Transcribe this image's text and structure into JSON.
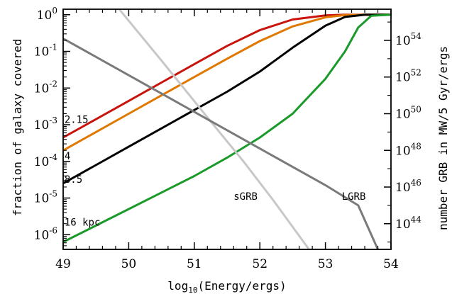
{
  "chart_data": {
    "type": "line",
    "xlabel_base": "log",
    "xlabel_sub": "10",
    "xlabel_rest": "(Energy/ergs)",
    "ylabel_left": "fraction of galaxy covered",
    "ylabel_right": "number GRB in MW/5 Gyr/ergs",
    "xlim": [
      49,
      54
    ],
    "ylim_left_log10": [
      -6.4,
      0.15
    ],
    "ylim_right_log10": [
      42.6,
      55.7
    ],
    "y_scale": "log",
    "x_ticks": [
      "49",
      "50",
      "51",
      "52",
      "53",
      "54"
    ],
    "left_ticks": [
      {
        "base": "10",
        "exp": "0",
        "value": 0
      },
      {
        "base": "10",
        "exp": "-1",
        "value": -1
      },
      {
        "base": "10",
        "exp": "-2",
        "value": -2
      },
      {
        "base": "10",
        "exp": "-3",
        "value": -3
      },
      {
        "base": "10",
        "exp": "-4",
        "value": -4
      },
      {
        "base": "10",
        "exp": "-5",
        "value": -5
      },
      {
        "base": "10",
        "exp": "-6",
        "value": -6
      }
    ],
    "right_ticks": [
      {
        "base": "10",
        "exp": "54",
        "value": 54
      },
      {
        "base": "10",
        "exp": "52",
        "value": 52
      },
      {
        "base": "10",
        "exp": "50",
        "value": 50
      },
      {
        "base": "10",
        "exp": "48",
        "value": 48
      },
      {
        "base": "10",
        "exp": "46",
        "value": 46
      },
      {
        "base": "10",
        "exp": "44",
        "value": 44
      }
    ],
    "series": [
      {
        "name": "2.15",
        "axis": "left",
        "color": "#c8140c",
        "x": [
          49,
          49.5,
          50,
          50.5,
          51,
          51.5,
          52,
          52.5,
          53,
          53.3,
          53.6,
          54
        ],
        "log10_y": [
          -3.35,
          -2.85,
          -2.35,
          -1.85,
          -1.35,
          -0.85,
          -0.42,
          -0.13,
          -0.02,
          0,
          0,
          0
        ]
      },
      {
        "name": "4",
        "axis": "left",
        "color": "#e07800",
        "x": [
          49,
          49.5,
          50,
          50.5,
          51,
          51.5,
          52,
          52.5,
          53,
          53.3,
          53.6,
          54
        ],
        "log10_y": [
          -3.7,
          -3.2,
          -2.7,
          -2.2,
          -1.7,
          -1.2,
          -0.72,
          -0.32,
          -0.07,
          -0.01,
          0,
          0
        ]
      },
      {
        "name": "8.5",
        "axis": "left",
        "color": "#000000",
        "x": [
          49,
          49.5,
          50,
          50.5,
          51,
          51.5,
          52,
          52.5,
          53,
          53.3,
          53.6,
          54
        ],
        "log10_y": [
          -4.6,
          -4.1,
          -3.6,
          -3.1,
          -2.6,
          -2.1,
          -1.55,
          -0.9,
          -0.3,
          -0.06,
          0,
          0
        ]
      },
      {
        "name": "16 kpc",
        "axis": "left",
        "color": "#1a9a2a",
        "x": [
          49,
          49.5,
          50,
          50.5,
          51,
          51.5,
          52,
          52.5,
          53,
          53.3,
          53.5,
          53.7,
          54
        ],
        "log10_y": [
          -6.2,
          -5.75,
          -5.3,
          -4.85,
          -4.4,
          -3.9,
          -3.35,
          -2.7,
          -1.75,
          -1.0,
          -0.35,
          -0.03,
          0
        ]
      },
      {
        "name": "sGRB",
        "axis": "right",
        "color": "#c8c8c8",
        "x": [
          49.74,
          50.5,
          51.2,
          51.75,
          52.2,
          52.75
        ],
        "log10_y": [
          56.2,
          52.9,
          49.8,
          47.4,
          45.3,
          42.6
        ]
      },
      {
        "name": "LGRB",
        "axis": "right",
        "color": "#7a7a7a",
        "x": [
          49,
          50,
          51,
          52,
          53,
          53.5,
          53.8
        ],
        "log10_y": [
          54.1,
          52.1,
          50.1,
          48.1,
          46.1,
          45.0,
          42.6
        ]
      }
    ],
    "annotations": [
      {
        "text": "2.15",
        "x": 49.02,
        "log10_y_left": -2.95
      },
      {
        "text": "4",
        "x": 49.02,
        "log10_y_left": -3.95
      },
      {
        "text": "8.5",
        "x": 49.02,
        "log10_y_left": -4.58
      },
      {
        "text": "16 kpc",
        "x": 49.02,
        "log10_y_left": -5.75
      },
      {
        "text": "sGRB",
        "x": 51.6,
        "log10_y_left": -5.05
      },
      {
        "text": "LGRB",
        "x": 53.25,
        "log10_y_left": -5.05
      }
    ],
    "grid": false
  }
}
